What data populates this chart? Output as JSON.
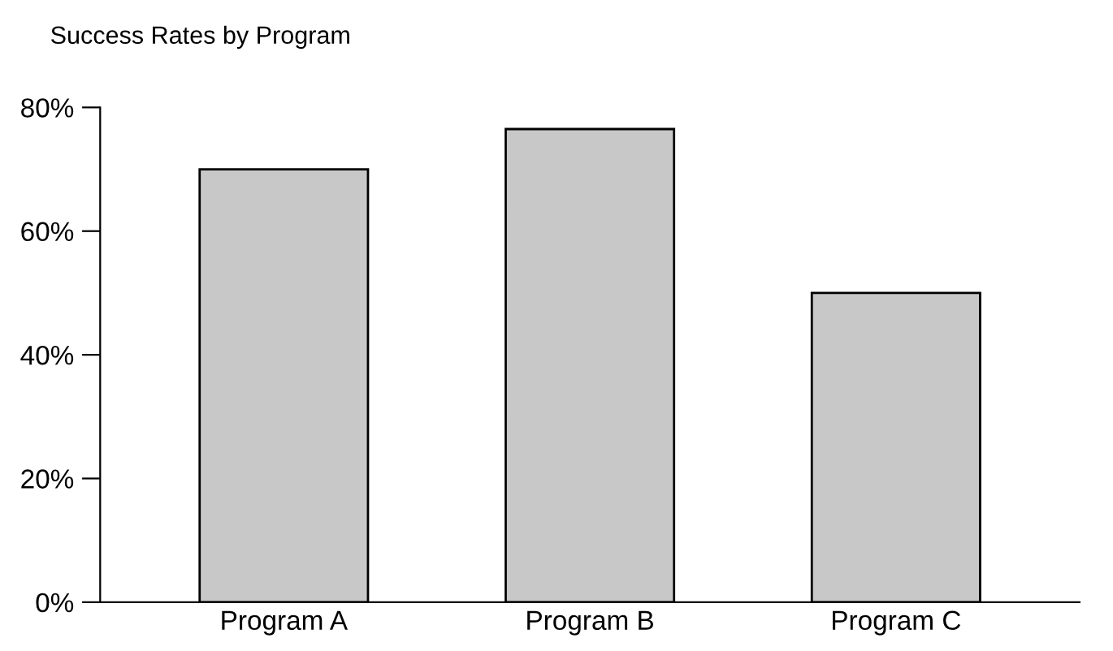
{
  "chart_data": {
    "type": "bar",
    "title": "Success Rates by Program",
    "categories": [
      "Program A",
      "Program B",
      "Program C"
    ],
    "values": [
      70,
      76.5,
      50
    ],
    "color": "#c8c8c8",
    "ylim": [
      0,
      80
    ],
    "yticks": [
      {
        "value": 0,
        "label": "0%"
      },
      {
        "value": 20,
        "label": "20%"
      },
      {
        "value": 40,
        "label": "40%"
      },
      {
        "value": 60,
        "label": "60%"
      },
      {
        "value": 80,
        "label": "80%"
      }
    ],
    "grid": false,
    "legend": false
  }
}
